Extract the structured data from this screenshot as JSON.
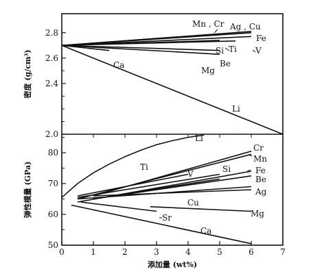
{
  "chart_data": [
    {
      "type": "line",
      "panel": "density",
      "ylabel": "密度 (g/cm³)",
      "xlim": [
        0,
        7
      ],
      "ylim": [
        2.0,
        2.95
      ],
      "yticks": [
        "2.8",
        "2.6",
        "2.4",
        "2.0"
      ],
      "base": [
        0,
        2.7
      ],
      "series": [
        {
          "name": "Ag , Cu",
          "x": [
            0,
            6
          ],
          "y": [
            2.7,
            2.81
          ]
        },
        {
          "name": "Fe",
          "x": [
            0,
            6
          ],
          "y": [
            2.7,
            2.8
          ]
        },
        {
          "name": "Mn , Cr",
          "x": [
            0,
            5
          ],
          "y": [
            2.7,
            2.79
          ]
        },
        {
          "name": "V",
          "x": [
            0,
            6
          ],
          "y": [
            2.7,
            2.77
          ]
        },
        {
          "name": "Si",
          "x": [
            0,
            5
          ],
          "y": [
            2.7,
            2.74
          ]
        },
        {
          "name": "Ti",
          "x": [
            0,
            5.5
          ],
          "y": [
            2.7,
            2.735
          ]
        },
        {
          "name": "Be",
          "x": [
            0,
            5
          ],
          "y": [
            2.7,
            2.66
          ]
        },
        {
          "name": "Mg",
          "x": [
            0,
            5
          ],
          "y": [
            2.7,
            2.63
          ]
        },
        {
          "name": "Ca",
          "x": [
            0,
            1.5
          ],
          "y": [
            2.7,
            2.66
          ]
        },
        {
          "name": "Li",
          "x": [
            0,
            7
          ],
          "y": [
            2.7,
            2.0
          ]
        }
      ]
    },
    {
      "type": "line",
      "panel": "modulus",
      "ylabel": "弹性模量 (GPa)",
      "xlabel": "添加量 (wt%)",
      "xlim": [
        0,
        7
      ],
      "ylim": [
        50,
        86
      ],
      "xticks": [
        "0",
        "1",
        "2",
        "3",
        "4",
        "5",
        "6",
        "7"
      ],
      "yticks": [
        "80",
        "70",
        "60",
        "50"
      ],
      "series": [
        {
          "name": "Li",
          "x": [
            0,
            0.5,
            1,
            1.5,
            2,
            2.5,
            3,
            3.5,
            4,
            4.5
          ],
          "y": [
            65.5,
            70,
            73.5,
            76.3,
            78.7,
            80.8,
            82.6,
            83.9,
            85,
            85.7
          ]
        },
        {
          "name": "Cr",
          "x": [
            1,
            6
          ],
          "y": [
            66,
            80.5
          ]
        },
        {
          "name": "Mn",
          "x": [
            0.5,
            6
          ],
          "y": [
            65,
            79.5
          ]
        },
        {
          "name": "Ti",
          "x": [
            0.5,
            4
          ],
          "y": [
            66,
            73
          ]
        },
        {
          "name": "V",
          "x": [
            0.5,
            5
          ],
          "y": [
            65.5,
            73
          ]
        },
        {
          "name": "Si",
          "x": [
            1,
            5
          ],
          "y": [
            65,
            71.5
          ]
        },
        {
          "name": "Fe",
          "x": [
            0.5,
            6
          ],
          "y": [
            64,
            74
          ]
        },
        {
          "name": "Be",
          "x": [
            1,
            6
          ],
          "y": [
            65,
            72.5
          ]
        },
        {
          "name": "Ag",
          "x": [
            0.5,
            6
          ],
          "y": [
            65,
            69
          ]
        },
        {
          "name": "Cu",
          "x": [
            1,
            6
          ],
          "y": [
            66,
            68
          ]
        },
        {
          "name": "Mg",
          "x": [
            2.8,
            6
          ],
          "y": [
            62.5,
            61
          ]
        },
        {
          "name": "Sr",
          "x": [
            0.6,
            3
          ],
          "y": [
            64,
            61
          ]
        },
        {
          "name": "Ca",
          "x": [
            0.3,
            6
          ],
          "y": [
            63,
            50.5
          ]
        }
      ]
    }
  ]
}
